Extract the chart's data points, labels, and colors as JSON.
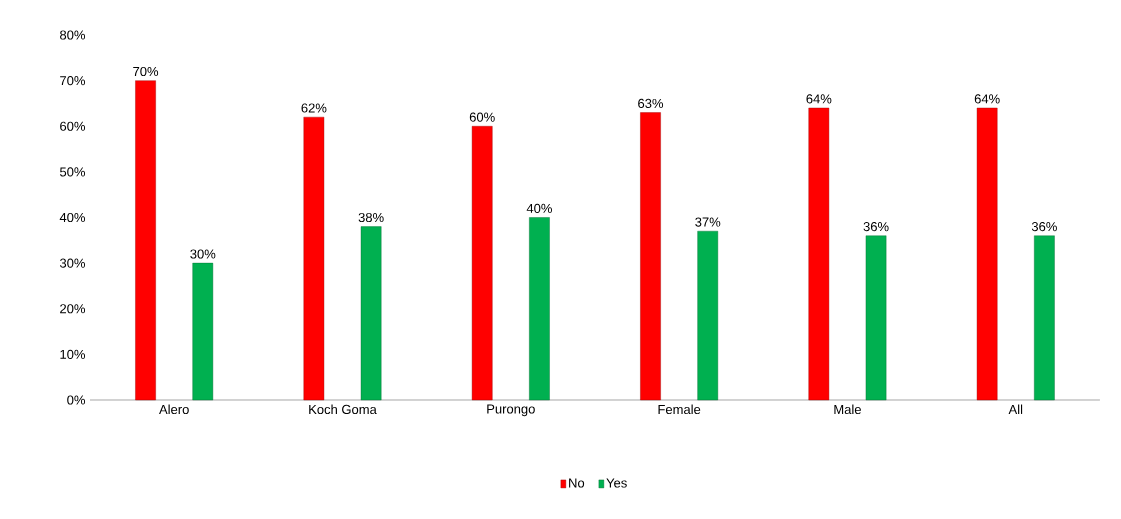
{
  "chart_data": {
    "type": "bar",
    "categories": [
      "Alero",
      "Koch Goma",
      "Purongo",
      "Female",
      "Male",
      "All"
    ],
    "series": [
      {
        "name": "No",
        "color": "#ff0000",
        "values": [
          70,
          62,
          60,
          63,
          64,
          64
        ],
        "value_labels": [
          "70%",
          "62%",
          "60%",
          "63%",
          "64%",
          "64%"
        ]
      },
      {
        "name": "Yes",
        "color": "#00b050",
        "values": [
          30,
          38,
          40,
          37,
          36,
          36
        ],
        "value_labels": [
          "30%",
          "38%",
          "40%",
          "37%",
          "36%",
          "36%"
        ]
      }
    ],
    "ylim": [
      0,
      80
    ],
    "yticks": [
      {
        "value": 0,
        "label": "0%"
      },
      {
        "value": 10,
        "label": "10%"
      },
      {
        "value": 20,
        "label": "20%"
      },
      {
        "value": 30,
        "label": "30%"
      },
      {
        "value": 40,
        "label": "40%"
      },
      {
        "value": 50,
        "label": "50%"
      },
      {
        "value": 60,
        "label": "60%"
      },
      {
        "value": 70,
        "label": "70%"
      },
      {
        "value": 80,
        "label": "80%"
      }
    ],
    "grid": false,
    "legend": "bottom"
  }
}
